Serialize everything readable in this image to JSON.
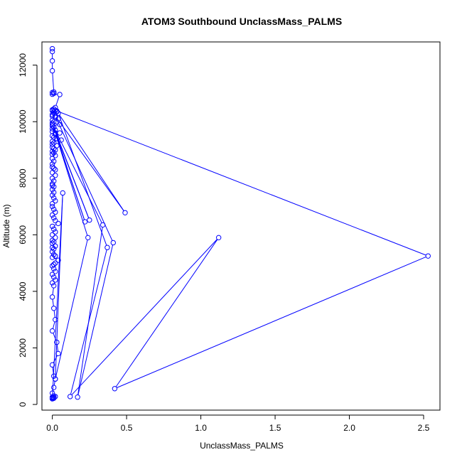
{
  "chart_data": {
    "type": "line",
    "title": "ATOM3 Southbound UnclassMass_PALMS",
    "xlabel": "UnclassMass_PALMS",
    "ylabel": "Altitude (m)",
    "xlim": [
      -0.07,
      2.61
    ],
    "ylim": [
      -200,
      12820
    ],
    "xticks": [
      0.0,
      0.5,
      1.0,
      1.5,
      2.0,
      2.5
    ],
    "xtick_labels": [
      "0.0",
      "0.5",
      "1.0",
      "1.5",
      "2.0",
      "2.5"
    ],
    "yticks": [
      0,
      2000,
      4000,
      6000,
      8000,
      10000,
      12000
    ],
    "ytick_labels": [
      "0",
      "2000",
      "4000",
      "6000",
      "8000",
      "10000",
      "12000"
    ],
    "grid": false,
    "series": [
      {
        "color": "#0000ff",
        "marker": "open-circle",
        "x": [
          0.0,
          0.0,
          0.0,
          0.0,
          0.01,
          0.0,
          0.01,
          0.0,
          0.05,
          0.02,
          0.01,
          0.0,
          0.0,
          0.01,
          0.02,
          0.03,
          0.01,
          0.0,
          0.0,
          0.02,
          0.04,
          0.0,
          0.01,
          0.0,
          0.05,
          0.0,
          0.01,
          0.0,
          0.02,
          0.0,
          0.05,
          0.02,
          0.0,
          0.01,
          0.03,
          0.06,
          0.0,
          0.01,
          0.0,
          0.03,
          0.0,
          0.01,
          0.02,
          0.0,
          0.01,
          0.0,
          0.02,
          0.0,
          0.01,
          0.0,
          0.0,
          0.01,
          0.02,
          0.0,
          0.02,
          0.0,
          0.01,
          0.0,
          0.0,
          0.01,
          0.0,
          0.01,
          0.0,
          0.01,
          0.02,
          0.0,
          0.0,
          0.01,
          0.02,
          0.0,
          0.01,
          0.02,
          0.04,
          0.0,
          0.01,
          0.02,
          0.0,
          0.02,
          0.0,
          0.01,
          0.0,
          0.02,
          0.0,
          0.01,
          0.0,
          0.01,
          0.02,
          0.0,
          0.04,
          0.02,
          0.01,
          0.0,
          0.01,
          0.02,
          0.0,
          0.01,
          0.02,
          0.0,
          0.01,
          0.0,
          0.01,
          0.02,
          0.0,
          0.03,
          0.04,
          0.0,
          0.01,
          0.02,
          0.01,
          0.0,
          0.01,
          0.02,
          0.0,
          0.01,
          0.0,
          0.01,
          0.01,
          0.0
        ],
        "y": [
          12580,
          12480,
          12150,
          11800,
          11050,
          11030,
          11000,
          10970,
          10960,
          10500,
          10450,
          10420,
          10390,
          10360,
          10400,
          10350,
          10300,
          10250,
          10200,
          10150,
          10100,
          10050,
          10000,
          9950,
          9900,
          9850,
          9800,
          9750,
          9700,
          9650,
          9600,
          9550,
          9500,
          9450,
          9400,
          9350,
          9300,
          9250,
          9200,
          9150,
          9100,
          9050,
          9000,
          8950,
          8900,
          8850,
          8800,
          8700,
          8600,
          8500,
          8400,
          8350,
          8300,
          8200,
          8100,
          8000,
          7900,
          7800,
          7750,
          7700,
          7600,
          7500,
          7400,
          7300,
          7200,
          7100,
          7000,
          6900,
          6800,
          6700,
          6600,
          6500,
          6400,
          6300,
          6200,
          6100,
          6000,
          5900,
          5800,
          5750,
          5700,
          5600,
          5550,
          5500,
          5400,
          5300,
          5250,
          5200,
          5100,
          5000,
          4950,
          4900,
          4800,
          4700,
          4600,
          4500,
          4400,
          4300,
          4200,
          3800,
          3400,
          3000,
          2600,
          2200,
          1800,
          1400,
          1000,
          900,
          600,
          400,
          300,
          280,
          260,
          250,
          240,
          230,
          220,
          210
        ]
      },
      {
        "color": "#0000ff",
        "marker": "open-circle",
        "x": [
          0.03,
          2.53,
          0.42,
          1.12,
          0.12,
          0.37,
          0.04,
          0.49,
          0.02,
          0.41,
          0.17,
          0.34,
          0.0,
          0.25,
          0.01,
          0.22,
          0.02,
          0.24,
          0.02,
          0.07,
          0.0
        ],
        "y": [
          10380,
          5250,
          560,
          5900,
          280,
          5550,
          10300,
          6780,
          10200,
          5720,
          260,
          6350,
          9900,
          6520,
          9800,
          6460,
          9600,
          5900,
          900,
          7480,
          200
        ]
      }
    ]
  }
}
